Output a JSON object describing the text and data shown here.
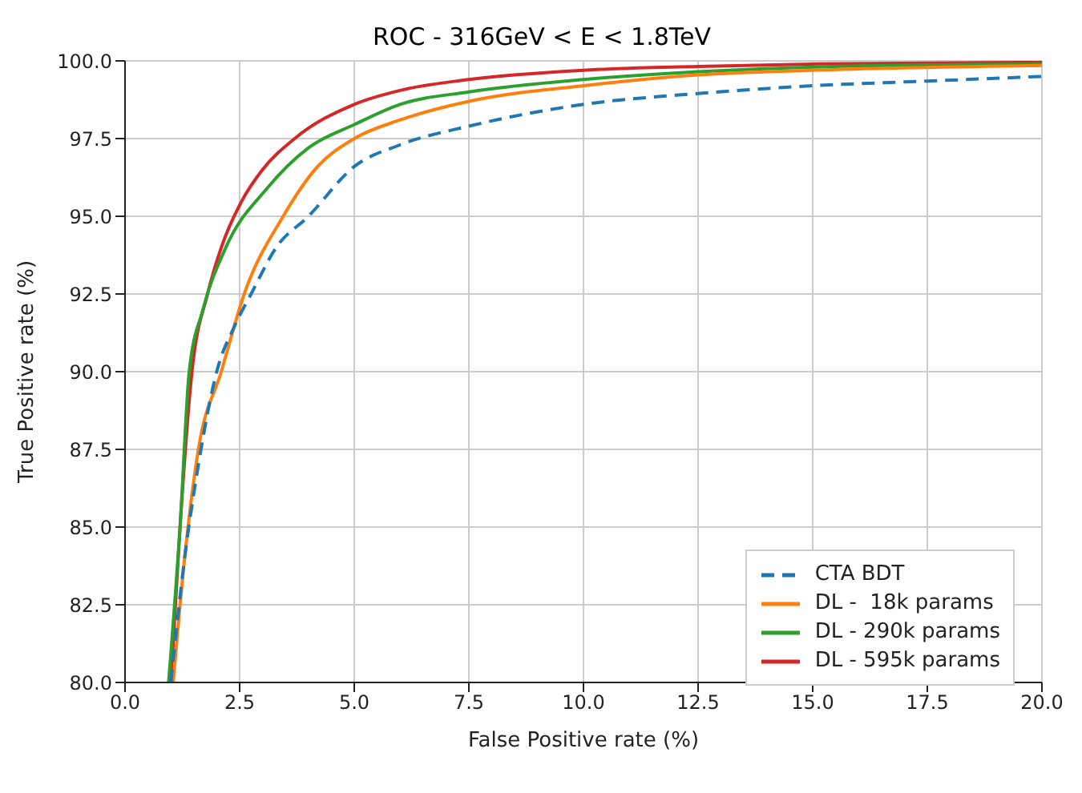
{
  "chart_data": {
    "type": "line",
    "title": "ROC - 316GeV < E < 1.8TeV",
    "xlabel": "False Positive rate (%)",
    "ylabel": "True Positive rate (%)",
    "xlim": [
      0,
      20
    ],
    "ylim": [
      80,
      100
    ],
    "xticks": [
      {
        "value": 0,
        "label": "0.0"
      },
      {
        "value": 2.5,
        "label": "2.5"
      },
      {
        "value": 5,
        "label": "5.0"
      },
      {
        "value": 7.5,
        "label": "7.5"
      },
      {
        "value": 10,
        "label": "10.0"
      },
      {
        "value": 12.5,
        "label": "12.5"
      },
      {
        "value": 15,
        "label": "15.0"
      },
      {
        "value": 17.5,
        "label": "17.5"
      },
      {
        "value": 20,
        "label": "20.0"
      }
    ],
    "yticks": [
      {
        "value": 80,
        "label": "80.0"
      },
      {
        "value": 82.5,
        "label": "82.5"
      },
      {
        "value": 85,
        "label": "85.0"
      },
      {
        "value": 87.5,
        "label": "87.5"
      },
      {
        "value": 90,
        "label": "90.0"
      },
      {
        "value": 92.5,
        "label": "92.5"
      },
      {
        "value": 95,
        "label": "95.0"
      },
      {
        "value": 97.5,
        "label": "97.5"
      },
      {
        "value": 100,
        "label": "100.0"
      }
    ],
    "grid": true,
    "legend": "bottom right",
    "series": [
      {
        "name": "CTA BDT",
        "color": "#1f77b4",
        "line_style": "dashed",
        "x": [
          1.0,
          1.3,
          1.6,
          2.0,
          2.4,
          2.75,
          3.3,
          4.0,
          5,
          6,
          7.5,
          10,
          12.5,
          15,
          17.5,
          20
        ],
        "values": [
          80,
          84,
          87,
          90,
          91.5,
          92.5,
          94,
          95,
          96.6,
          97.3,
          97.9,
          98.6,
          98.95,
          99.2,
          99.35,
          99.5
        ]
      },
      {
        "name": "DL -  18k params",
        "color": "#ff7f0e",
        "line_style": "solid",
        "x": [
          1.05,
          1.3,
          1.6,
          2.1,
          2.6,
          3.45,
          4.2,
          5,
          6,
          7.5,
          10,
          12.5,
          15,
          20
        ],
        "values": [
          80,
          84,
          87.5,
          90,
          92.5,
          95,
          96.6,
          97.5,
          98.1,
          98.7,
          99.2,
          99.55,
          99.7,
          99.85
        ]
      },
      {
        "name": "DL - 290k params",
        "color": "#2ca02c",
        "line_style": "solid",
        "x": [
          0.95,
          1.2,
          1.4,
          1.7,
          2.2,
          3.1,
          4.0,
          5,
          6,
          7.5,
          10,
          12.5,
          15,
          20
        ],
        "values": [
          80,
          85,
          90,
          92,
          94,
          95.9,
          97.2,
          97.95,
          98.6,
          99.0,
          99.4,
          99.65,
          99.8,
          99.9
        ]
      },
      {
        "name": "DL - 595k params",
        "color": "#d62728",
        "line_style": "solid",
        "x": [
          1.0,
          1.2,
          1.46,
          1.8,
          2.1,
          2.55,
          3.0,
          3.7,
          5,
          6,
          7.5,
          10,
          12.5,
          15,
          20
        ],
        "values": [
          80,
          85,
          90,
          92.5,
          94,
          95.5,
          96.5,
          97.5,
          98.6,
          99.05,
          99.4,
          99.7,
          99.82,
          99.9,
          99.95
        ]
      }
    ]
  }
}
